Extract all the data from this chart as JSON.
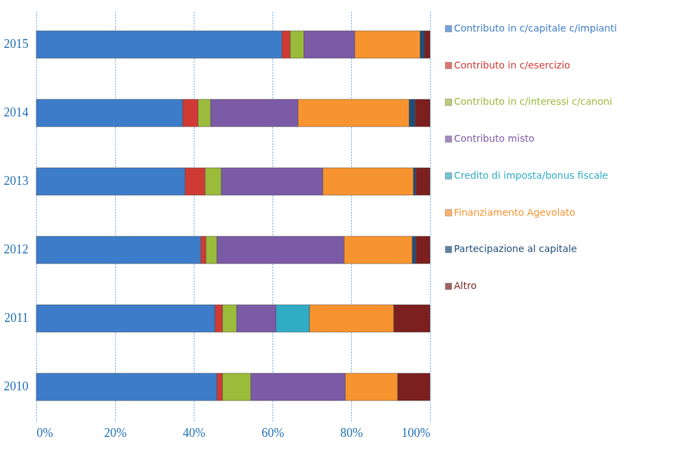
{
  "chart_data": {
    "type": "bar",
    "orientation": "horizontal",
    "stacked": true,
    "categories": [
      "2015",
      "2014",
      "2013",
      "2012",
      "2011",
      "2010"
    ],
    "series": [
      {
        "name": "Contributo in c/capitale c/impianti",
        "color": "#3d7cc9",
        "values": [
          62.4,
          37.2,
          37.8,
          41.8,
          45.4,
          45.9
        ]
      },
      {
        "name": "Contributo in c/esercizio",
        "color": "#d03a35",
        "values": [
          2.1,
          3.9,
          5.1,
          1.3,
          1.9,
          1.4
        ]
      },
      {
        "name": "Contributo in c/interessi c/canoni",
        "color": "#9bbb3b",
        "values": [
          3.5,
          3.2,
          4.1,
          2.8,
          3.6,
          7.2
        ]
      },
      {
        "name": "Contributo misto",
        "color": "#7b5aa6",
        "values": [
          12.9,
          22.2,
          25.8,
          32.3,
          10.0,
          24.0
        ]
      },
      {
        "name": "Credito di imposta/bonus fiscale",
        "color": "#31acc6",
        "values": [
          null,
          null,
          null,
          null,
          8.5,
          null
        ]
      },
      {
        "name": "Finanziamento Agevolato",
        "color": "#f7942f",
        "values": [
          16.6,
          28.2,
          23.0,
          17.3,
          21.4,
          13.3
        ]
      },
      {
        "name": "Partecipazione al capitale",
        "color": "#1f4e79",
        "values": [
          1.1,
          1.5,
          0.6,
          0.9,
          null,
          null
        ]
      },
      {
        "name": "Altro",
        "color": "#7b1f1f",
        "values": [
          1.4,
          3.8,
          3.6,
          3.6,
          9.2,
          8.2
        ]
      }
    ],
    "xlim": [
      0,
      100
    ],
    "xticks": [
      {
        "value": 0,
        "label": "0%"
      },
      {
        "value": 20,
        "label": "20%"
      },
      {
        "value": 40,
        "label": "40%"
      },
      {
        "value": 60,
        "label": "60%"
      },
      {
        "value": 80,
        "label": "80%"
      },
      {
        "value": 100,
        "label": "100%"
      }
    ],
    "grid": "x",
    "legend": "right"
  }
}
